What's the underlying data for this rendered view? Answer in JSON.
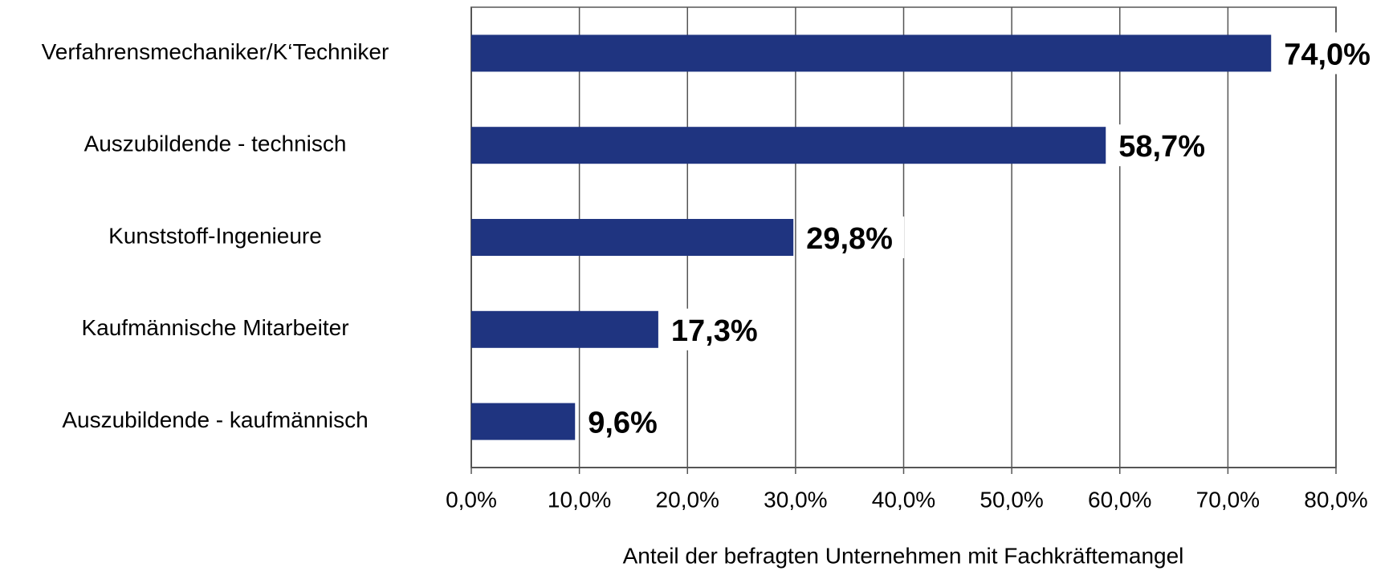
{
  "chart_data": {
    "type": "bar",
    "orientation": "horizontal",
    "x_label": "Anteil der befragten Unternehmen mit Fachkräftemangel",
    "categories": [
      "Verfahrensmechaniker/K‘Techniker",
      "Auszubildende - technisch",
      "Kunststoff-Ingenieure",
      "Kaufmännische Mitarbeiter",
      "Auszubildende - kaufmännisch"
    ],
    "values": [
      74.0,
      58.7,
      29.8,
      17.3,
      9.6
    ],
    "value_labels": [
      "74,0%",
      "58,7%",
      "29,8%",
      "17,3%",
      "9,6%"
    ],
    "color": "#1f3480",
    "xlim": [
      0,
      80
    ],
    "xticks": [
      {
        "value": 0,
        "label": "0,0%"
      },
      {
        "value": 10,
        "label": "10,0%"
      },
      {
        "value": 20,
        "label": "20,0%"
      },
      {
        "value": 30,
        "label": "30,0%"
      },
      {
        "value": 40,
        "label": "40,0%"
      },
      {
        "value": 50,
        "label": "50,0%"
      },
      {
        "value": 60,
        "label": "60,0%"
      },
      {
        "value": 70,
        "label": "70,0%"
      },
      {
        "value": 80,
        "label": "80,0%"
      }
    ],
    "grid": true
  }
}
